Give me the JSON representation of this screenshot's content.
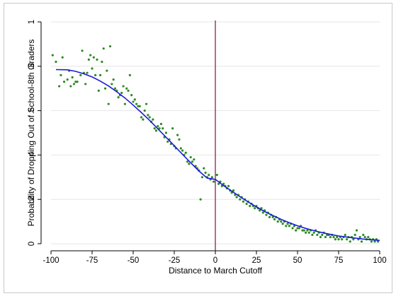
{
  "chart_data": {
    "type": "scatter",
    "title": "",
    "xlabel": "Distance to March Cutoff",
    "ylabel": "Probability of Dropping Out of School-8th Graders",
    "xlim": [
      -100,
      100
    ],
    "ylim": [
      0,
      1
    ],
    "x_ticks": [
      -100,
      -75,
      -50,
      -25,
      0,
      25,
      50,
      75,
      100
    ],
    "x_tick_labels": [
      "-100",
      "-75",
      "-50",
      "-25",
      "0",
      "25",
      "50",
      "75",
      "100"
    ],
    "y_ticks": [
      0,
      0.2,
      0.4,
      0.6,
      0.8,
      1
    ],
    "y_tick_labels": [
      "0",
      ".2",
      ".4",
      ".6",
      ".8",
      "1"
    ],
    "cutoff_line": {
      "x": 0,
      "color": "#8b0a3c"
    },
    "grid": "horizontal",
    "colors": {
      "points": "#2e8b22",
      "fit": "#1a1adb",
      "grid": "#e6e6e6"
    },
    "series": [
      {
        "type": "scatter",
        "points": [
          [
            -99,
            0.85
          ],
          [
            -97,
            0.82
          ],
          [
            -95,
            0.71
          ],
          [
            -94,
            0.76
          ],
          [
            -93,
            0.84
          ],
          [
            -92,
            0.73
          ],
          [
            -90,
            0.74
          ],
          [
            -89,
            0.78
          ],
          [
            -88,
            0.71
          ],
          [
            -87,
            0.75
          ],
          [
            -86,
            0.72
          ],
          [
            -85,
            0.73
          ],
          [
            -84,
            0.73
          ],
          [
            -82,
            0.76
          ],
          [
            -81,
            0.87
          ],
          [
            -80,
            0.77
          ],
          [
            -79,
            0.72
          ],
          [
            -78,
            0.77
          ],
          [
            -77,
            0.83
          ],
          [
            -76,
            0.85
          ],
          [
            -75,
            0.79
          ],
          [
            -74,
            0.84
          ],
          [
            -73,
            0.76
          ],
          [
            -72,
            0.83
          ],
          [
            -71,
            0.69
          ],
          [
            -70,
            0.76
          ],
          [
            -69,
            0.82
          ],
          [
            -68,
            0.88
          ],
          [
            -67,
            0.7
          ],
          [
            -66,
            0.78
          ],
          [
            -65,
            0.63
          ],
          [
            -64,
            0.89
          ],
          [
            -63,
            0.72
          ],
          [
            -62,
            0.74
          ],
          [
            -61,
            0.7
          ],
          [
            -60,
            0.69
          ],
          [
            -59,
            0.66
          ],
          [
            -58,
            0.67
          ],
          [
            -57,
            0.68
          ],
          [
            -56,
            0.71
          ],
          [
            -55,
            0.63
          ],
          [
            -54,
            0.7
          ],
          [
            -53,
            0.69
          ],
          [
            -52,
            0.76
          ],
          [
            -51,
            0.67
          ],
          [
            -50,
            0.64
          ],
          [
            -49,
            0.65
          ],
          [
            -48,
            0.63
          ],
          [
            -47,
            0.62
          ],
          [
            -46,
            0.62
          ],
          [
            -45,
            0.57
          ],
          [
            -44,
            0.56
          ],
          [
            -43,
            0.6
          ],
          [
            -42,
            0.63
          ],
          [
            -41,
            0.58
          ],
          [
            -40,
            0.57
          ],
          [
            -39,
            0.55
          ],
          [
            -38,
            0.56
          ],
          [
            -37,
            0.52
          ],
          [
            -36,
            0.51
          ],
          [
            -35,
            0.53
          ],
          [
            -34,
            0.52
          ],
          [
            -33,
            0.54
          ],
          [
            -32,
            0.52
          ],
          [
            -31,
            0.48
          ],
          [
            -30,
            0.5
          ],
          [
            -29,
            0.46
          ],
          [
            -28,
            0.47
          ],
          [
            -27,
            0.45
          ],
          [
            -26,
            0.52
          ],
          [
            -25,
            0.44
          ],
          [
            -24,
            0.43
          ],
          [
            -23,
            0.49
          ],
          [
            -22,
            0.47
          ],
          [
            -21,
            0.43
          ],
          [
            -20,
            0.42
          ],
          [
            -19,
            0.4
          ],
          [
            -18,
            0.41
          ],
          [
            -17,
            0.37
          ],
          [
            -16,
            0.36
          ],
          [
            -15,
            0.39
          ],
          [
            -14,
            0.37
          ],
          [
            -13,
            0.38
          ],
          [
            -12,
            0.35
          ],
          [
            -11,
            0.34
          ],
          [
            -10,
            0.33
          ],
          [
            -9,
            0.2
          ],
          [
            -8,
            0.3
          ],
          [
            -7,
            0.34
          ],
          [
            -6,
            0.32
          ],
          [
            -5,
            0.3
          ],
          [
            -4,
            0.31
          ],
          [
            -3,
            0.29
          ],
          [
            -2,
            0.3
          ],
          [
            -1,
            0.28
          ],
          [
            1,
            0.31
          ],
          [
            2,
            0.27
          ],
          [
            3,
            0.28
          ],
          [
            4,
            0.26
          ],
          [
            5,
            0.27
          ],
          [
            6,
            0.26
          ],
          [
            7,
            0.25
          ],
          [
            8,
            0.26
          ],
          [
            9,
            0.24
          ],
          [
            10,
            0.23
          ],
          [
            11,
            0.24
          ],
          [
            12,
            0.22
          ],
          [
            13,
            0.21
          ],
          [
            14,
            0.22
          ],
          [
            15,
            0.2
          ],
          [
            16,
            0.21
          ],
          [
            17,
            0.19
          ],
          [
            18,
            0.2
          ],
          [
            19,
            0.18
          ],
          [
            20,
            0.19
          ],
          [
            21,
            0.17
          ],
          [
            22,
            0.18
          ],
          [
            23,
            0.17
          ],
          [
            24,
            0.16
          ],
          [
            25,
            0.17
          ],
          [
            26,
            0.16
          ],
          [
            27,
            0.15
          ],
          [
            28,
            0.16
          ],
          [
            29,
            0.14
          ],
          [
            30,
            0.15
          ],
          [
            31,
            0.13
          ],
          [
            32,
            0.14
          ],
          [
            33,
            0.12
          ],
          [
            34,
            0.13
          ],
          [
            35,
            0.12
          ],
          [
            36,
            0.11
          ],
          [
            37,
            0.12
          ],
          [
            38,
            0.1
          ],
          [
            39,
            0.11
          ],
          [
            40,
            0.1
          ],
          [
            41,
            0.09
          ],
          [
            42,
            0.1
          ],
          [
            43,
            0.08
          ],
          [
            44,
            0.09
          ],
          [
            45,
            0.08
          ],
          [
            46,
            0.09
          ],
          [
            47,
            0.07
          ],
          [
            48,
            0.08
          ],
          [
            49,
            0.06
          ],
          [
            50,
            0.07
          ],
          [
            51,
            0.07
          ],
          [
            52,
            0.08
          ],
          [
            53,
            0.06
          ],
          [
            54,
            0.06
          ],
          [
            55,
            0.05
          ],
          [
            56,
            0.06
          ],
          [
            57,
            0.05
          ],
          [
            58,
            0.06
          ],
          [
            59,
            0.04
          ],
          [
            60,
            0.05
          ],
          [
            61,
            0.06
          ],
          [
            62,
            0.04
          ],
          [
            63,
            0.05
          ],
          [
            64,
            0.03
          ],
          [
            65,
            0.04
          ],
          [
            66,
            0.05
          ],
          [
            67,
            0.03
          ],
          [
            68,
            0.04
          ],
          [
            69,
            0.04
          ],
          [
            70,
            0.03
          ],
          [
            71,
            0.04
          ],
          [
            72,
            0.03
          ],
          [
            73,
            0.02
          ],
          [
            74,
            0.03
          ],
          [
            75,
            0.02
          ],
          [
            76,
            0.03
          ],
          [
            77,
            0.02
          ],
          [
            78,
            0.03
          ],
          [
            79,
            0.04
          ],
          [
            80,
            0.02
          ],
          [
            81,
            0.03
          ],
          [
            82,
            0.01
          ],
          [
            83,
            0.03
          ],
          [
            84,
            0.02
          ],
          [
            85,
            0.04
          ],
          [
            86,
            0.06
          ],
          [
            87,
            0.02
          ],
          [
            88,
            0.03
          ],
          [
            89,
            0.01
          ],
          [
            90,
            0.04
          ],
          [
            91,
            0.03
          ],
          [
            92,
            0.02
          ],
          [
            93,
            0.03
          ],
          [
            94,
            0.02
          ],
          [
            95,
            0.01
          ],
          [
            96,
            0.02
          ],
          [
            97,
            0.01
          ],
          [
            98,
            0.02
          ],
          [
            99,
            0.01
          ]
        ]
      },
      {
        "type": "line",
        "points": [
          [
            -97,
            0.785
          ],
          [
            -90,
            0.784
          ],
          [
            -85,
            0.777
          ],
          [
            -80,
            0.766
          ],
          [
            -75,
            0.752
          ],
          [
            -70,
            0.733
          ],
          [
            -65,
            0.711
          ],
          [
            -60,
            0.685
          ],
          [
            -55,
            0.657
          ],
          [
            -50,
            0.625
          ],
          [
            -45,
            0.591
          ],
          [
            -40,
            0.556
          ],
          [
            -35,
            0.518
          ],
          [
            -30,
            0.48
          ],
          [
            -25,
            0.442
          ],
          [
            -20,
            0.403
          ],
          [
            -15,
            0.365
          ],
          [
            -10,
            0.328
          ],
          [
            -5,
            0.296
          ],
          [
            0,
            0.29
          ],
          [
            5,
            0.262
          ],
          [
            10,
            0.237
          ],
          [
            15,
            0.212
          ],
          [
            20,
            0.188
          ],
          [
            25,
            0.166
          ],
          [
            30,
            0.145
          ],
          [
            35,
            0.127
          ],
          [
            40,
            0.11
          ],
          [
            45,
            0.095
          ],
          [
            50,
            0.081
          ],
          [
            55,
            0.069
          ],
          [
            60,
            0.059
          ],
          [
            65,
            0.05
          ],
          [
            70,
            0.042
          ],
          [
            75,
            0.035
          ],
          [
            80,
            0.03
          ],
          [
            85,
            0.025
          ],
          [
            90,
            0.021
          ],
          [
            95,
            0.018
          ],
          [
            100,
            0.015
          ]
        ]
      }
    ]
  }
}
